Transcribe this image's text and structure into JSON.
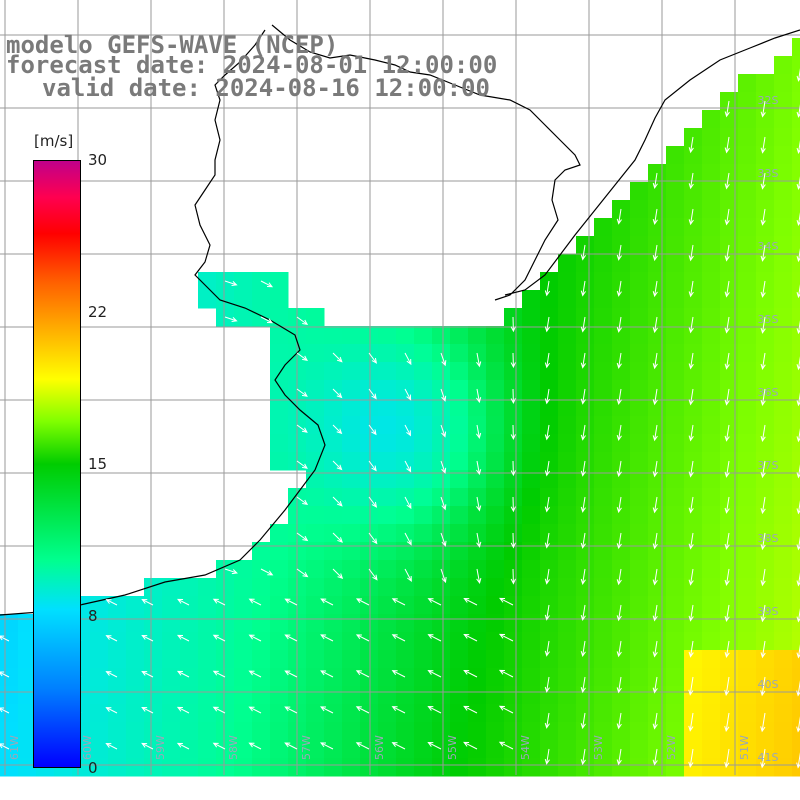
{
  "title": {
    "line1": "modelo GEFS-WAVE (NCEP)",
    "line2": "forecast date: 2024-08-01 12:00:00",
    "line3": "valid date: 2024-08-16 12:00:00"
  },
  "colorbar": {
    "unit": "[m/s]",
    "ticks": [
      "30",
      "22",
      "15",
      "8",
      "0"
    ],
    "tick_values": [
      30,
      22,
      15,
      8,
      0
    ],
    "range": [
      0,
      30
    ],
    "colors": [
      "#0000ff",
      "#0080ff",
      "#00e0ff",
      "#00ff90",
      "#00cc00",
      "#80ff00",
      "#ffff00",
      "#ffb000",
      "#ff6000",
      "#ff0000",
      "#c0008a"
    ]
  },
  "map": {
    "lon_labels": [
      "61W",
      "60W",
      "59W",
      "58W",
      "57W",
      "56W",
      "55W",
      "54W",
      "53W",
      "52W",
      "51W"
    ],
    "lat_labels": [
      "32S",
      "33S",
      "34S",
      "35S",
      "36S",
      "37S",
      "38S",
      "39S",
      "40S",
      "41S"
    ],
    "land_color": "#ffffff",
    "grid_color": "#999999",
    "coast_color": "#000000"
  }
}
